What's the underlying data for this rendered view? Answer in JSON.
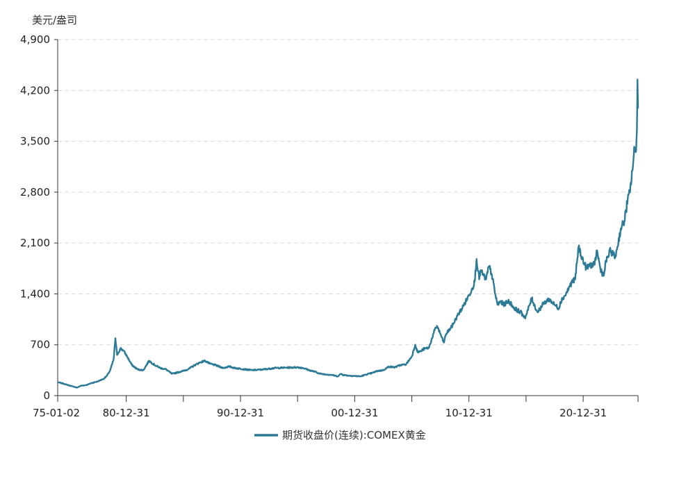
{
  "chart_data": {
    "type": "line",
    "unit_label": "美元/盎司",
    "y_ticks": [
      "0",
      "700",
      "1,400",
      "2,100",
      "2,800",
      "3,500",
      "4,200",
      "4,900"
    ],
    "ylim": [
      0,
      4900
    ],
    "x_ticks": [
      "75-01-02",
      "80-12-31",
      "90-12-31",
      "00-12-31",
      "10-12-31",
      "20-12-31"
    ],
    "xlim": [
      1975.0,
      2025.8
    ],
    "grid": true,
    "legend_position": "bottom",
    "colors": {
      "series": "#2c7a96"
    },
    "series": [
      {
        "name": "期货收盘价(连续):COMEX黄金",
        "x": [
          1975.0,
          1975.5,
          1976.0,
          1976.7,
          1977.0,
          1977.5,
          1978.0,
          1978.5,
          1979.0,
          1979.3,
          1979.6,
          1979.9,
          1980.05,
          1980.2,
          1980.5,
          1980.75,
          1981.0,
          1981.5,
          1982.0,
          1982.5,
          1983.0,
          1983.5,
          1984.0,
          1984.5,
          1985.0,
          1985.5,
          1986.0,
          1986.5,
          1987.0,
          1987.5,
          1987.9,
          1988.3,
          1988.8,
          1989.5,
          1990.0,
          1990.5,
          1991.0,
          1992.0,
          1993.0,
          1994.0,
          1995.0,
          1996.0,
          1996.5,
          1997.0,
          1997.5,
          1998.0,
          1999.0,
          1999.5,
          1999.8,
          2000.0,
          2000.5,
          2001.0,
          2001.5,
          2002.0,
          2002.5,
          2003.0,
          2003.5,
          2004.0,
          2004.5,
          2005.0,
          2005.5,
          2006.0,
          2006.3,
          2006.5,
          2006.8,
          2007.0,
          2007.5,
          2008.0,
          2008.2,
          2008.5,
          2008.8,
          2009.0,
          2009.5,
          2010.0,
          2010.5,
          2011.0,
          2011.3,
          2011.5,
          2011.67,
          2011.9,
          2012.0,
          2012.3,
          2012.5,
          2012.75,
          2013.0,
          2013.3,
          2013.5,
          2013.8,
          2014.0,
          2014.5,
          2015.0,
          2015.5,
          2015.9,
          2016.0,
          2016.5,
          2016.9,
          2017.0,
          2017.5,
          2018.0,
          2018.5,
          2018.9,
          2019.0,
          2019.5,
          2019.8,
          2020.0,
          2020.3,
          2020.6,
          2021.0,
          2021.3,
          2021.6,
          2022.0,
          2022.2,
          2022.5,
          2022.8,
          2023.0,
          2023.4,
          2023.8,
          2024.0,
          2024.3,
          2024.6,
          2024.9,
          2025.1,
          2025.3,
          2025.5,
          2025.6,
          2025.7,
          2025.75,
          2025.8
        ],
        "y": [
          185,
          165,
          140,
          110,
          135,
          145,
          175,
          195,
          230,
          270,
          350,
          500,
          790,
          560,
          650,
          620,
          560,
          420,
          360,
          350,
          480,
          420,
          380,
          360,
          300,
          320,
          340,
          370,
          420,
          460,
          480,
          440,
          420,
          380,
          400,
          380,
          370,
          350,
          360,
          380,
          385,
          390,
          380,
          350,
          330,
          300,
          285,
          265,
          300,
          285,
          275,
          270,
          265,
          290,
          310,
          340,
          350,
          400,
          390,
          420,
          430,
          540,
          700,
          600,
          610,
          640,
          660,
          900,
          960,
          850,
          730,
          850,
          950,
          1100,
          1230,
          1380,
          1480,
          1570,
          1880,
          1600,
          1720,
          1650,
          1600,
          1780,
          1670,
          1400,
          1250,
          1300,
          1250,
          1300,
          1200,
          1150,
          1080,
          1100,
          1340,
          1180,
          1150,
          1260,
          1330,
          1250,
          1200,
          1290,
          1400,
          1500,
          1560,
          1600,
          2050,
          1850,
          1750,
          1800,
          1800,
          2000,
          1750,
          1650,
          1850,
          2000,
          1900,
          2050,
          2300,
          2400,
          2700,
          2800,
          3100,
          3400,
          3350,
          3650,
          4350,
          3950
        ]
      }
    ]
  }
}
